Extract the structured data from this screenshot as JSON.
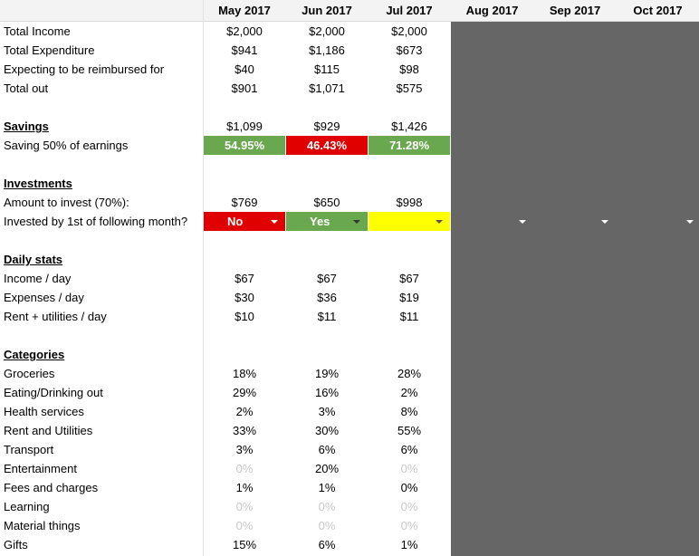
{
  "months": [
    "May 2017",
    "Jun 2017",
    "Jul 2017",
    "Aug 2017",
    "Sep 2017",
    "Oct 2017"
  ],
  "colors": {
    "green": "#6aa84f",
    "red": "#e00000",
    "yellow": "#ffff00",
    "gray": "#666666"
  },
  "summary": {
    "total_income": {
      "label": "Total Income",
      "values": [
        "$2,000",
        "$2,000",
        "$2,000"
      ]
    },
    "total_expenditure": {
      "label": "Total Expenditure",
      "values": [
        "$941",
        "$1,186",
        "$673"
      ]
    },
    "reimbursed": {
      "label": "Expecting to be reimbursed for",
      "values": [
        "$40",
        "$115",
        "$98"
      ]
    },
    "total_out": {
      "label": "Total out",
      "values": [
        "$901",
        "$1,071",
        "$575"
      ]
    }
  },
  "savings": {
    "heading": "Savings",
    "heading_values": [
      "$1,099",
      "$929",
      "$1,426"
    ],
    "target_label": "Saving 50% of earnings",
    "target_values": [
      "54.95%",
      "46.43%",
      "71.28%"
    ],
    "target_status": [
      "green",
      "red",
      "green"
    ]
  },
  "investments": {
    "heading": "Investments",
    "amount_label": "Amount to invest (70%):",
    "amount_values": [
      "$769",
      "$650",
      "$998"
    ],
    "invested_label": "Invested by 1st of following month?",
    "invested_values": [
      "No",
      "Yes",
      ""
    ],
    "invested_status": [
      "red",
      "green",
      "yellow"
    ]
  },
  "daily_stats": {
    "heading": "Daily stats",
    "rows": [
      {
        "label": "Income / day",
        "values": [
          "$67",
          "$67",
          "$67"
        ]
      },
      {
        "label": "Expenses / day",
        "values": [
          "$30",
          "$36",
          "$19"
        ]
      },
      {
        "label": "Rent + utilities / day",
        "values": [
          "$10",
          "$11",
          "$11"
        ]
      }
    ]
  },
  "categories": {
    "heading": "Categories",
    "rows": [
      {
        "label": "Groceries",
        "values": [
          "18%",
          "19%",
          "28%"
        ]
      },
      {
        "label": "Eating/Drinking out",
        "values": [
          "29%",
          "16%",
          "2%"
        ]
      },
      {
        "label": "Health services",
        "values": [
          "2%",
          "3%",
          "8%"
        ]
      },
      {
        "label": "Rent and Utilities",
        "values": [
          "33%",
          "30%",
          "55%"
        ]
      },
      {
        "label": "Transport",
        "values": [
          "3%",
          "6%",
          "6%"
        ]
      },
      {
        "label": "Entertainment",
        "values": [
          "0%",
          "20%",
          "0%"
        ]
      },
      {
        "label": "Fees and charges",
        "values": [
          "1%",
          "1%",
          "0%"
        ]
      },
      {
        "label": "Learning",
        "values": [
          "0%",
          "0%",
          "0%"
        ]
      },
      {
        "label": "Material things",
        "values": [
          "0%",
          "0%",
          "0%"
        ]
      },
      {
        "label": "Gifts",
        "values": [
          "15%",
          "6%",
          "1%"
        ]
      }
    ]
  }
}
